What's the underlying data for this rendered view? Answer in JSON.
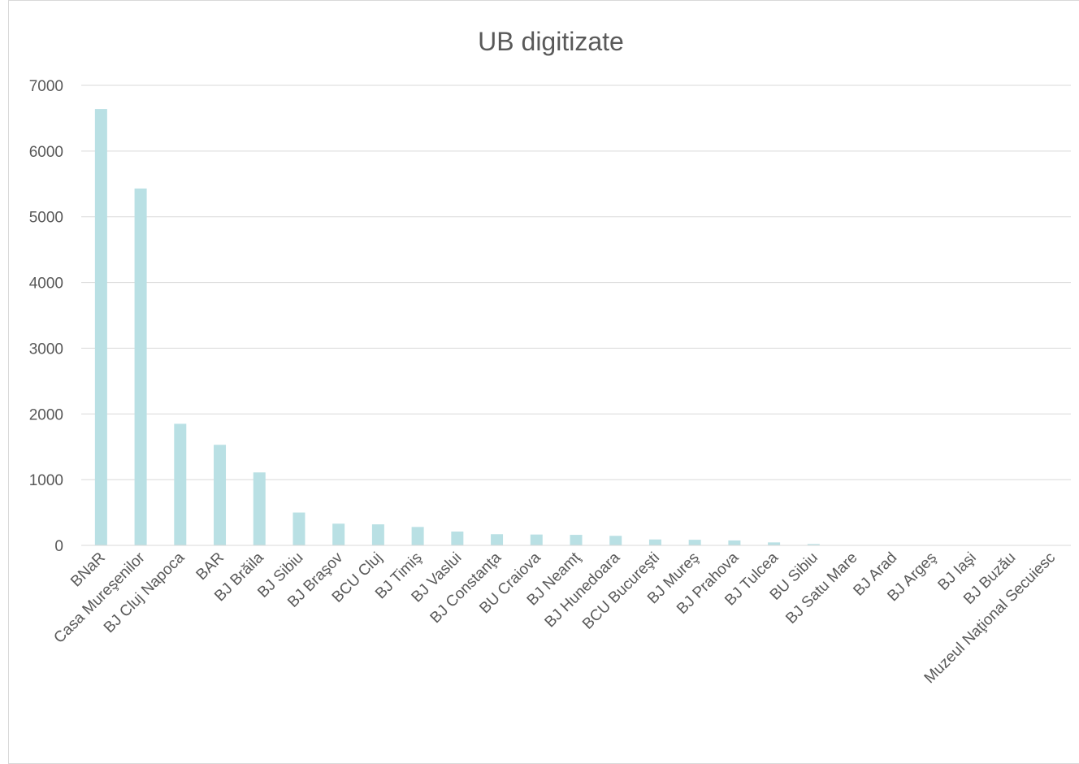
{
  "chart_data": {
    "type": "bar",
    "title": "UB digitizate",
    "xlabel": "",
    "ylabel": "",
    "ylim": [
      0,
      7000
    ],
    "yticks": [
      0,
      1000,
      2000,
      3000,
      4000,
      5000,
      6000,
      7000
    ],
    "grid": true,
    "legend": "none",
    "bar_color": "#b9e0e4",
    "categories": [
      "BNaR",
      "Casa Mureşenilor",
      "BJ Cluj Napoca",
      "BAR",
      "BJ Brăila",
      "BJ Sibiu",
      "BJ Braşov",
      "BCU Cluj",
      "BJ Timiş",
      "BJ Vaslui",
      "BJ Constanţa",
      "BU Craiova",
      "BJ Neamţ",
      "BJ Hunedoara",
      "BCU Bucureşti",
      "BJ Mureş",
      "BJ Prahova",
      "BJ Tulcea",
      "BU Sibiu",
      "BJ Satu Mare",
      "BJ Arad",
      "BJ Argeş",
      "BJ Iaşi",
      "BJ Buzău",
      "Muzeul Naţional Secuiesc"
    ],
    "values": [
      6640,
      5430,
      1850,
      1530,
      1110,
      500,
      330,
      320,
      280,
      210,
      170,
      165,
      160,
      145,
      90,
      85,
      75,
      45,
      20,
      5,
      3,
      2,
      2,
      1,
      1
    ]
  }
}
